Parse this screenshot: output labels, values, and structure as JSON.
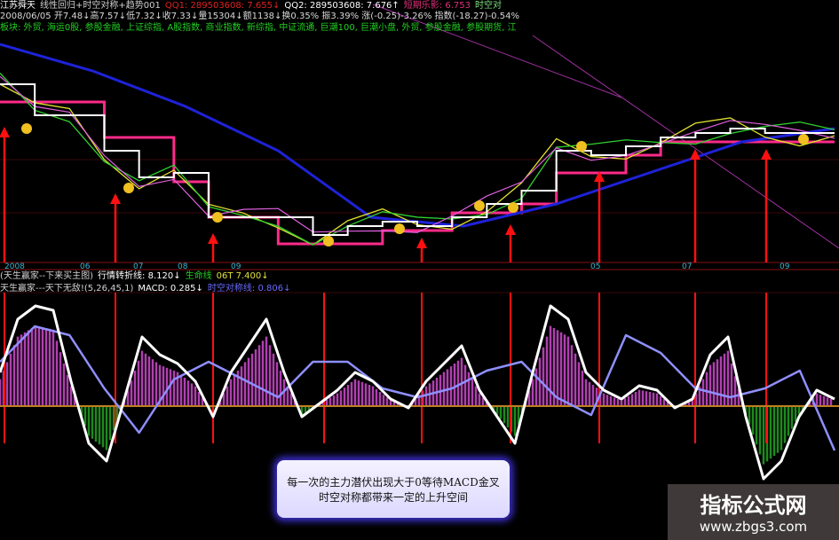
{
  "header": {
    "line1": [
      {
        "text": "江苏舜天",
        "color": "#ffffff"
      },
      {
        "text": "线性回归+时空对称+趋势001",
        "color": "#d0d0d0"
      },
      {
        "text": "QQ1: 289503608: 7.655↓",
        "color": "#e02020"
      },
      {
        "text": "QQ2: 289503608: 7.676↑",
        "color": "#ffffff"
      },
      {
        "text": "短期乐影: 6.753",
        "color": "#e0307a"
      },
      {
        "text": "时空对",
        "color": "#7fe07f"
      }
    ],
    "line2": "2008/06/05 开7.48↓高7.57↓低7.32↓收7.33↓量15304↓额1138↓换0.35% 振3.39% 涨(-0.25)-3.26% 指数(-18.27)-0.54%",
    "line3": "板块: 外贸, 海运0股, 参股金融, 上证综指, A股指数, 商业指数, 新综指, 中证流通, 巨潮100, 巨潮小盘, 外贸, 参股金融, 参股期货, 江"
  },
  "lower_header": {
    "line1": [
      {
        "text": "(天生赢家--下来买主图)",
        "color": "#d0d0d0"
      },
      {
        "text": "行情转折线: 8.120↓",
        "color": "#ffffff"
      },
      {
        "text": "生命线",
        "color": "#20d020"
      },
      {
        "text": "06T 7.400↓",
        "color": "#e0e040"
      }
    ],
    "line2": [
      {
        "text": "天生赢家---天下无敌!(5,26,45,1)",
        "color": "#d0d0d0"
      },
      {
        "text": "MACD: 0.285↓",
        "color": "#ffffff"
      },
      {
        "text": "时空对称线: 0.806↓",
        "color": "#6a6aff"
      }
    ]
  },
  "annotation": {
    "line1": "每一次的主力潜伏出现大于0等待MACD金叉",
    "line2": "时空对称都带来一定的上升空间"
  },
  "watermark": {
    "title": "指标公式网",
    "url": "www.zbgs3.com"
  },
  "colors": {
    "price": "#ffffff",
    "ma_long": "#1e22d8",
    "support": "#ff2a8a",
    "ma_short": "#e0e030",
    "macd": "#ffffff",
    "signal": "#8f8fff",
    "hist_pos": "#b040b0",
    "hist_neg": "#1e8a1e",
    "arrow": "#ff1010",
    "smiley": "#f0c020"
  },
  "chart_data": [
    {
      "type": "line",
      "title": "",
      "x_ticks": [
        "2008",
        "06",
        "07",
        "08",
        "09",
        "05",
        "07",
        "09"
      ],
      "series": [
        {
          "key": "price",
          "values": [
            8.68,
            7.84,
            7.84,
            6.88,
            6.16,
            6.28,
            5.08,
            5.08,
            5.08,
            4.6,
            4.84,
            4.96,
            4.84,
            5.08,
            5.44,
            5.8,
            6.88,
            6.76,
            7.0,
            7.24,
            7.36,
            7.48,
            7.36,
            7.36,
            7.36
          ]
        },
        {
          "key": "ma_long",
          "values": [
            9.76,
            9.04,
            8.08,
            6.88,
            5.08,
            4.84,
            5.44,
            6.28,
            7.12,
            7.48
          ]
        },
        {
          "key": "support",
          "values": [
            8.2,
            8.2,
            8.2,
            7.24,
            7.24,
            6.04,
            5.08,
            5.08,
            4.36,
            4.36,
            4.36,
            4.72,
            4.72,
            5.2,
            5.2,
            5.44,
            6.28,
            6.28,
            6.76,
            7.12,
            7.12,
            7.12,
            7.12,
            7.12,
            7.12
          ]
        }
      ],
      "signal_arrows": 8,
      "ylim": [
        4,
        10
      ]
    },
    {
      "type": "bar",
      "title": "",
      "series": [
        {
          "key": "macd",
          "values": [
            0.38,
            0.98,
            1.13,
            1.08,
            0.28,
            -0.42,
            -0.62,
            0.08,
            0.78,
            0.58,
            0.48,
            0.28,
            -0.12,
            0.38,
            0.68,
            0.98,
            0.38,
            -0.12,
            0.03,
            0.18,
            0.38,
            0.28,
            0.08,
            -0.02,
            0.28,
            0.48,
            0.68,
            0.18,
            -0.12,
            -0.42,
            0.38,
            1.13,
            0.98,
            0.38,
            0.18,
            0.08,
            0.23,
            0.18,
            -0.02,
            0.08,
            0.58,
            0.78,
            -0.12,
            -0.82,
            -0.62,
            -0.12,
            0.18,
            0.08
          ]
        },
        {
          "key": "signal",
          "values": [
            0.5,
            0.9,
            0.8,
            0.2,
            -0.3,
            0.3,
            0.5,
            0.3,
            0.1,
            0.5,
            0.5,
            0.2,
            0.1,
            0.2,
            0.4,
            0.5,
            0.1,
            -0.1,
            0.8,
            0.6,
            0.2,
            0.1,
            0.2,
            0.4,
            -0.5
          ]
        }
      ],
      "ylim": [
        -1.3,
        1.3
      ]
    }
  ]
}
